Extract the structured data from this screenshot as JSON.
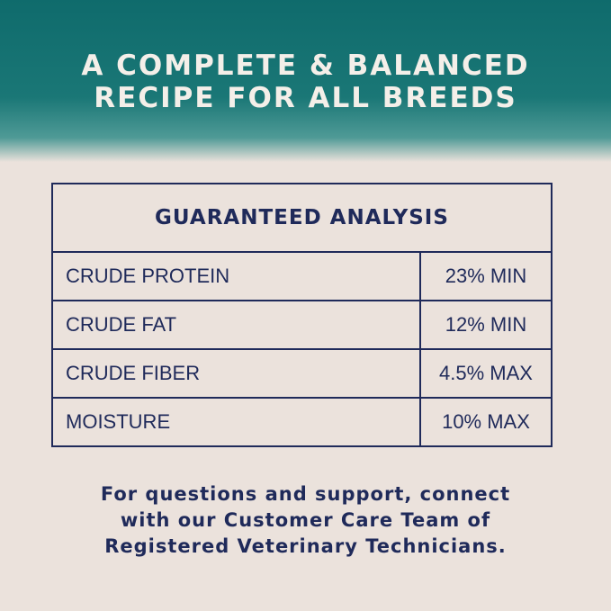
{
  "title": [
    "A COMPLETE & BALANCED",
    "RECIPE FOR ALL BREEDS"
  ],
  "table": {
    "header": "GUARANTEED ANALYSIS",
    "rows": [
      {
        "name": "CRUDE PROTEIN",
        "value": "23% MIN"
      },
      {
        "name": "CRUDE FAT",
        "value": "12% MIN"
      },
      {
        "name": "CRUDE FIBER",
        "value": "4.5% MAX"
      },
      {
        "name": "MOISTURE",
        "value": "10% MAX"
      }
    ]
  },
  "footer": [
    "For questions and support, connect",
    "with our Customer Care Team of",
    "Registered Veterinary Technicians."
  ]
}
